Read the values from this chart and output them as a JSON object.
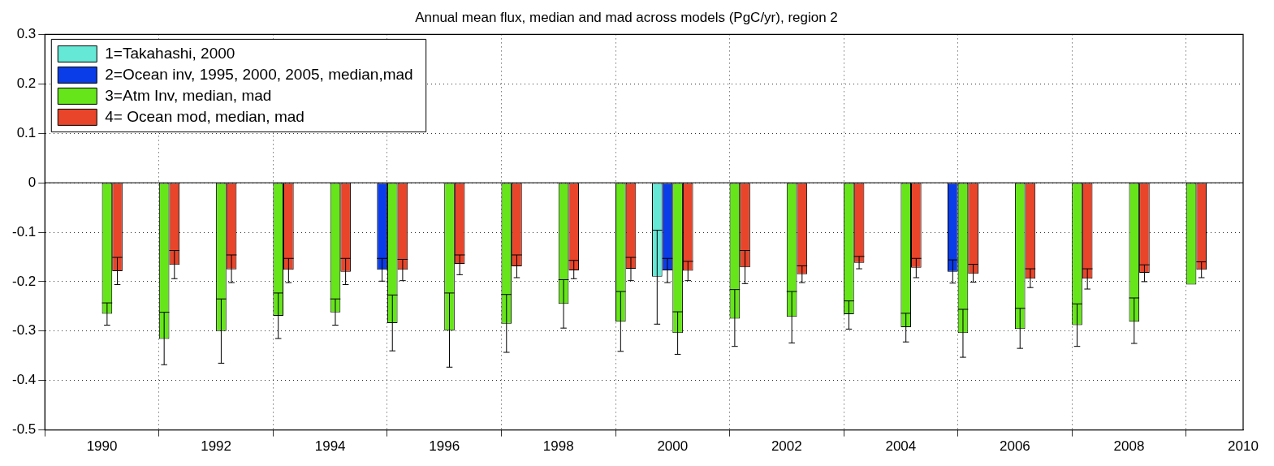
{
  "chart_data": {
    "type": "bar",
    "title": "Annual mean flux, median and mad across models (PgC/yr), region 2",
    "series": [
      {
        "name": "1=Takahashi, 2000",
        "color": "#66e8d6",
        "x": [
          2000
        ],
        "values": [
          -0.19
        ],
        "errors": [
          [
            -0.286,
            -0.096
          ]
        ]
      },
      {
        "name": "2=Ocean inv, 1995, 2000, 2005, median,mad",
        "color": "#0a3de8",
        "x": [
          1995,
          2000,
          2005
        ],
        "values": [
          -0.176,
          -0.177,
          -0.18
        ],
        "errors": [
          [
            -0.199,
            -0.153
          ],
          [
            -0.202,
            -0.153
          ],
          [
            -0.203,
            -0.156
          ]
        ]
      },
      {
        "name": "3=Atm Inv, median, mad",
        "color": "#66e61a",
        "x": [
          1990,
          1991,
          1992,
          1993,
          1994,
          1995,
          1996,
          1997,
          1998,
          1999,
          2000,
          2001,
          2002,
          2003,
          2004,
          2005,
          2006,
          2007,
          2008,
          2009
        ],
        "values": [
          -0.265,
          -0.316,
          -0.3,
          -0.269,
          -0.262,
          -0.284,
          -0.299,
          -0.285,
          -0.245,
          -0.281,
          -0.304,
          -0.275,
          -0.271,
          -0.266,
          -0.292,
          -0.304,
          -0.296,
          -0.288,
          -0.281,
          -0.206
        ],
        "errors": [
          [
            -0.288,
            -0.243
          ],
          [
            -0.368,
            -0.262
          ],
          [
            -0.365,
            -0.235
          ],
          [
            -0.315,
            -0.223
          ],
          [
            -0.288,
            -0.235
          ],
          [
            -0.34,
            -0.227
          ],
          [
            -0.373,
            -0.223
          ],
          [
            -0.343,
            -0.226
          ],
          [
            -0.294,
            -0.196
          ],
          [
            -0.341,
            -0.22
          ],
          [
            -0.347,
            -0.261
          ],
          [
            -0.331,
            -0.216
          ],
          [
            -0.324,
            -0.22
          ],
          [
            -0.296,
            -0.239
          ],
          [
            -0.322,
            -0.264
          ],
          [
            -0.353,
            -0.256
          ],
          [
            -0.335,
            -0.254
          ],
          [
            -0.331,
            -0.245
          ],
          [
            -0.325,
            -0.233
          ],
          null
        ]
      },
      {
        "name": "4= Ocean mod, median, mad",
        "color": "#e8452a",
        "x": [
          1990,
          1991,
          1992,
          1993,
          1994,
          1995,
          1996,
          1997,
          1998,
          1999,
          2000,
          2001,
          2002,
          2003,
          2004,
          2005,
          2006,
          2007,
          2008,
          2009
        ],
        "values": [
          -0.179,
          -0.166,
          -0.175,
          -0.176,
          -0.18,
          -0.176,
          -0.164,
          -0.169,
          -0.177,
          -0.174,
          -0.178,
          -0.171,
          -0.185,
          -0.162,
          -0.172,
          -0.184,
          -0.194,
          -0.194,
          -0.182,
          -0.176
        ],
        "errors": [
          [
            -0.206,
            -0.151
          ],
          [
            -0.194,
            -0.137
          ],
          [
            -0.202,
            -0.146
          ],
          [
            -0.202,
            -0.153
          ],
          [
            -0.206,
            -0.153
          ],
          [
            -0.198,
            -0.155
          ],
          [
            -0.186,
            -0.146
          ],
          [
            -0.192,
            -0.146
          ],
          [
            -0.194,
            -0.157
          ],
          [
            -0.198,
            -0.151
          ],
          [
            -0.198,
            -0.159
          ],
          [
            -0.204,
            -0.137
          ],
          [
            -0.202,
            -0.168
          ],
          [
            -0.174,
            -0.149
          ],
          [
            -0.192,
            -0.153
          ],
          [
            -0.201,
            -0.165
          ],
          [
            -0.212,
            -0.174
          ],
          [
            -0.215,
            -0.174
          ],
          [
            -0.2,
            -0.166
          ],
          [
            -0.192,
            -0.16
          ]
        ]
      }
    ],
    "xlim": [
      1989,
      2010
    ],
    "xticks": [
      1990,
      1992,
      1994,
      1996,
      1998,
      2000,
      2002,
      2004,
      2006,
      2008,
      2010
    ],
    "ylim": [
      -0.5,
      0.3
    ],
    "yticks": [
      -0.5,
      -0.4,
      -0.3,
      -0.2,
      -0.1,
      0,
      0.1,
      0.2,
      0.3
    ],
    "grid": true,
    "legend": "top left"
  }
}
